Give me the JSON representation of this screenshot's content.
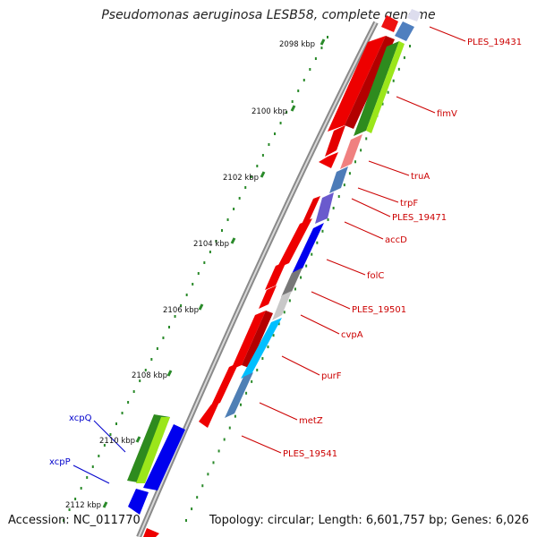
{
  "header": {
    "title": "Pseudomonas aeruginosa LESB58, complete genome"
  },
  "footer": {
    "accession": "Accession: NC_011770",
    "summary": "Topology: circular; Length: 6,601,757 bp; Genes: 6,026"
  },
  "kbp_ticks": [
    "2098 kbp",
    "2100 kbp",
    "2102 kbp",
    "2104 kbp",
    "2106 kbp",
    "2108 kbp",
    "2110 kbp",
    "2112 kbp"
  ],
  "gene_labels_right": [
    "PLES_19431",
    "fimV",
    "truA",
    "trpF",
    "PLES_19471",
    "accD",
    "folC",
    "PLES_19501",
    "cvpA",
    "purF",
    "metZ",
    "PLES_19541"
  ],
  "gene_labels_left": [
    "xcpQ",
    "xcpP"
  ],
  "colors": {
    "label_red": "#cc0000",
    "label_blue": "#0000cc",
    "backbone": "#888888",
    "tick_green": "#2a8a2a"
  }
}
